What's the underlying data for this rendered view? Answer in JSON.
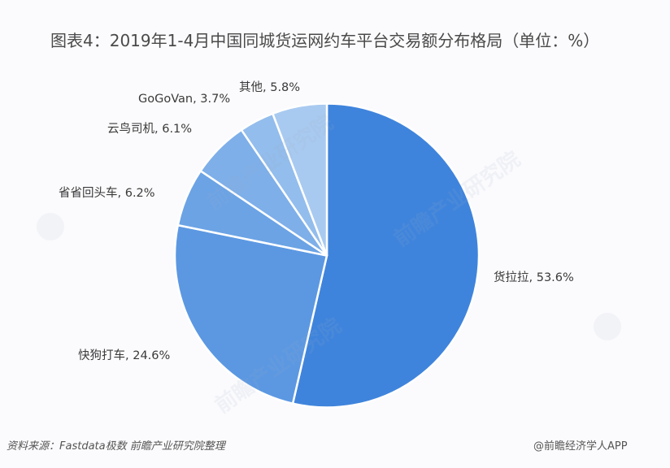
{
  "title": "图表4：2019年1-4月中国同城货运网约车平台交易额分布格局（单位：%）",
  "chart_data": {
    "type": "pie",
    "title": "图表4：2019年1-4月中国同城货运网约车平台交易额分布格局（单位：%）",
    "unit": "%",
    "start_angle": "12 o'clock, clockwise",
    "categories": [
      "货拉拉",
      "快狗打车",
      "省省回头车",
      "云鸟司机",
      "GoGoVan",
      "其他"
    ],
    "values": [
      53.6,
      24.6,
      6.2,
      6.1,
      3.7,
      5.8
    ],
    "colors": [
      "#3f84dc",
      "#5c98e2",
      "#6ba3e5",
      "#7eafe9",
      "#93bdec",
      "#a9caf0"
    ],
    "legend": "none (direct labels)"
  },
  "labels": [
    {
      "text": "货拉拉, 53.6%"
    },
    {
      "text": "快狗打车, 24.6%"
    },
    {
      "text": "省省回头车, 6.2%"
    },
    {
      "text": "云鸟司机, 6.1%"
    },
    {
      "text": "GoGoVan, 3.7%"
    },
    {
      "text": "其他, 5.8%"
    }
  ],
  "footer": {
    "source": "资料来源：Fastdata极数 前瞻产业研究院整理",
    "credit": "@前瞻经济学人APP"
  },
  "watermark": "前瞻产业研究院"
}
